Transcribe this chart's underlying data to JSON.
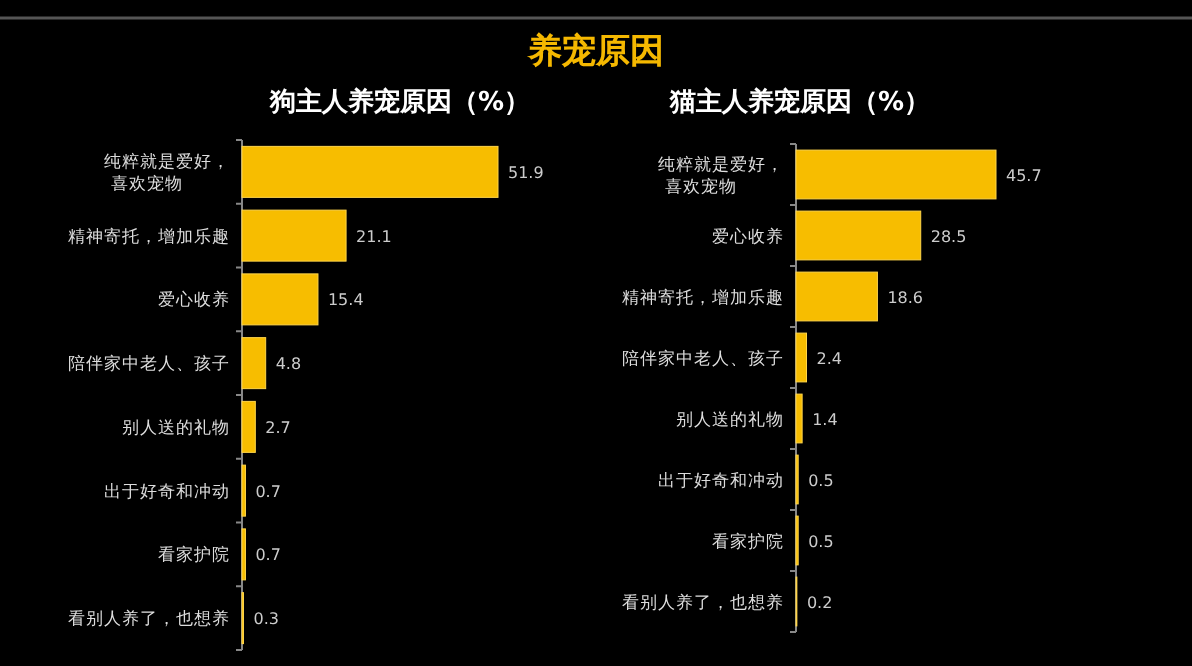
{
  "chart_data": [
    {
      "type": "other",
      "title": "养宠原因"
    },
    {
      "type": "bar",
      "orientation": "horizontal",
      "title": "狗主人养宠原因（%）",
      "data_labels": true,
      "color": "#f7bd00",
      "categories": [
        "纯粹就是爱好，喜欢宠物",
        "精神寄托，增加乐趣",
        "爱心收养",
        "陪伴家中老人、孩子",
        "别人送的礼物",
        "出于好奇和冲动",
        "看家护院",
        "看别人养了，也想养"
      ],
      "values": [
        51.9,
        21.1,
        15.4,
        4.8,
        2.7,
        0.7,
        0.7,
        0.3
      ]
    },
    {
      "type": "bar",
      "orientation": "horizontal",
      "title": "猫主人养宠原因（%）",
      "data_labels": true,
      "color": "#f7bd00",
      "categories": [
        "纯粹就是爱好，喜欢宠物",
        "爱心收养",
        "精神寄托，增加乐趣",
        "陪伴家中老人、孩子",
        "别人送的礼物",
        "出于好奇和冲动",
        "看家护院",
        "看别人养了，也想养"
      ],
      "values": [
        45.7,
        28.5,
        18.6,
        2.4,
        1.4,
        0.5,
        0.5,
        0.2
      ]
    }
  ]
}
